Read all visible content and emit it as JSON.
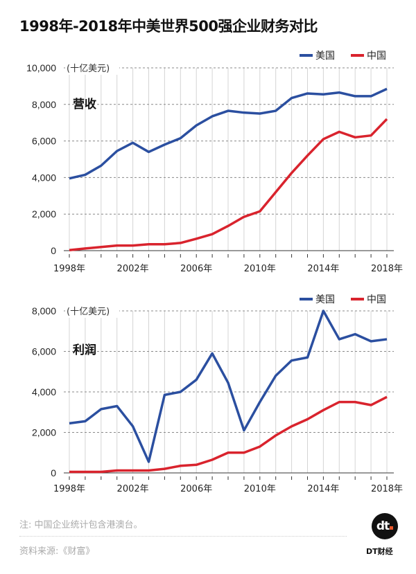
{
  "title": "1998年-2018年中美世界500强企业财务对比",
  "chart_data": [
    {
      "type": "line",
      "title": "营收",
      "unit_label": "(十亿美元)",
      "x": [
        1998,
        1999,
        2000,
        2001,
        2002,
        2003,
        2004,
        2005,
        2006,
        2007,
        2008,
        2009,
        2010,
        2011,
        2012,
        2013,
        2014,
        2015,
        2016,
        2017,
        2018
      ],
      "x_tick_labels": [
        "1998年",
        "2002年",
        "2006年",
        "2010年",
        "2014年",
        "2018年"
      ],
      "y_ticks": [
        0,
        2000,
        4000,
        6000,
        8000,
        10000
      ],
      "y_tick_labels": [
        "0",
        "2,000",
        "4,000",
        "6,000",
        "8,000",
        "10,000"
      ],
      "ylim": [
        0,
        10000
      ],
      "grid": true,
      "legend_position": "top-right",
      "series": [
        {
          "name": "美国",
          "color": "#2b4fa0",
          "values": [
            3950,
            4150,
            4650,
            5450,
            5900,
            5400,
            5800,
            6150,
            6850,
            7350,
            7650,
            7550,
            7500,
            7650,
            8350,
            8600,
            8550,
            8650,
            8450,
            8450,
            8850
          ]
        },
        {
          "name": "中国",
          "color": "#d9232d",
          "values": [
            30,
            120,
            200,
            280,
            280,
            350,
            350,
            420,
            650,
            900,
            1350,
            1850,
            2150,
            3200,
            4250,
            5200,
            6100,
            6500,
            6200,
            6300,
            7200
          ]
        }
      ]
    },
    {
      "type": "line",
      "title": "利润",
      "unit_label": "(十亿美元)",
      "x": [
        1998,
        1999,
        2000,
        2001,
        2002,
        2003,
        2004,
        2005,
        2006,
        2007,
        2008,
        2009,
        2010,
        2011,
        2012,
        2013,
        2014,
        2015,
        2016,
        2017,
        2018
      ],
      "x_tick_labels": [
        "1998年",
        "2002年",
        "2006年",
        "2010年",
        "2014年",
        "2018年"
      ],
      "y_ticks": [
        0,
        2000,
        4000,
        6000,
        8000
      ],
      "y_tick_labels": [
        "0",
        "2,000",
        "4,000",
        "6,000",
        "8,000"
      ],
      "ylim": [
        0,
        8000
      ],
      "grid": true,
      "legend_position": "top-right",
      "series": [
        {
          "name": "美国",
          "color": "#2b4fa0",
          "values": [
            2450,
            2550,
            3150,
            3300,
            2300,
            550,
            3850,
            4000,
            4600,
            5900,
            4450,
            2100,
            3500,
            4800,
            5550,
            5700,
            8000,
            6600,
            6850,
            6500,
            6600
          ]
        },
        {
          "name": "中国",
          "color": "#d9232d",
          "values": [
            50,
            50,
            50,
            120,
            120,
            120,
            200,
            350,
            400,
            650,
            1000,
            1000,
            1300,
            1850,
            2300,
            2650,
            3100,
            3500,
            3500,
            3350,
            3750
          ]
        }
      ]
    }
  ],
  "footer": {
    "note": "注: 中国企业统计包含港澳台。",
    "source": "资料来源:《财富》",
    "logo_text": "dt",
    "brand": "DT财经"
  }
}
